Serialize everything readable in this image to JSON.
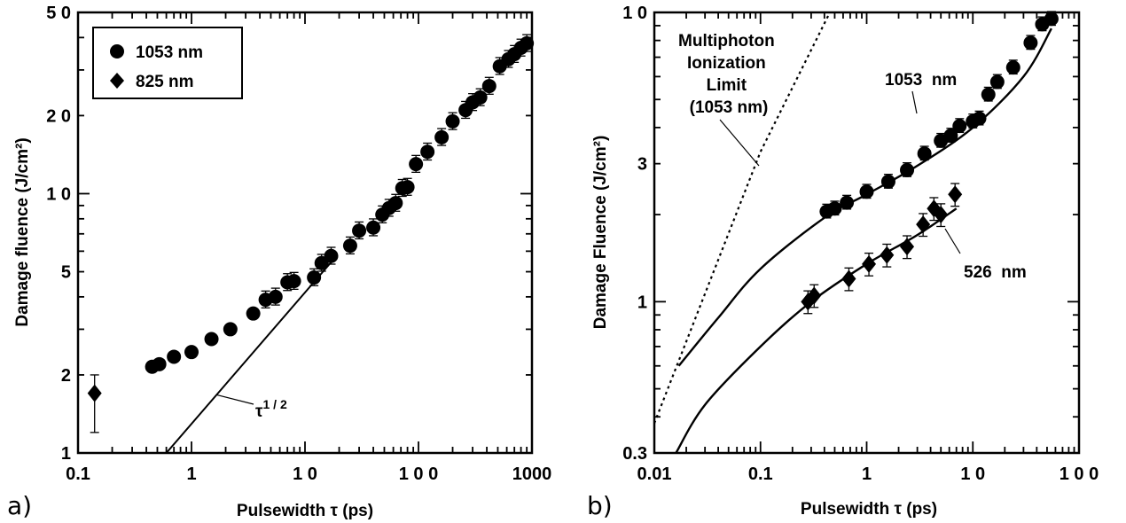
{
  "chart_data": [
    {
      "type": "scatter",
      "panel_label": "a)",
      "xlabel": "Pulsewidth τ (ps)",
      "ylabel": "Damage fluence (J/cm²)",
      "xscale": "log",
      "yscale": "log",
      "xlim": [
        0.1,
        1000
      ],
      "ylim": [
        1,
        50
      ],
      "xticks": [
        {
          "value": 0.1,
          "label": "0.1"
        },
        {
          "value": 1,
          "label": "1"
        },
        {
          "value": 10,
          "label": "1 0"
        },
        {
          "value": 100,
          "label": "1 0 0"
        },
        {
          "value": 1000,
          "label": "1000"
        }
      ],
      "yticks": [
        {
          "value": 1,
          "label": "1"
        },
        {
          "value": 2,
          "label": "2"
        },
        {
          "value": 5,
          "label": "5"
        },
        {
          "value": 10,
          "label": "1 0"
        },
        {
          "value": 20,
          "label": "2 0"
        },
        {
          "value": 50,
          "label": "5 0"
        }
      ],
      "legend": {
        "position": "top-left",
        "entries": [
          {
            "label": "1053 nm",
            "marker": "circle"
          },
          {
            "label": "825 nm",
            "marker": "diamond"
          }
        ]
      },
      "series": [
        {
          "name": "1053 nm",
          "marker": "circle",
          "points": [
            [
              0.45,
              2.15
            ],
            [
              0.52,
              2.2
            ],
            [
              0.7,
              2.35
            ],
            [
              1.0,
              2.45
            ],
            [
              1.5,
              2.75
            ],
            [
              2.2,
              3.0
            ],
            [
              3.5,
              3.45
            ],
            [
              4.5,
              3.9
            ],
            [
              5.5,
              4.0
            ],
            [
              7.0,
              4.55
            ],
            [
              8.0,
              4.6
            ],
            [
              12,
              4.75
            ],
            [
              14,
              5.4
            ],
            [
              17,
              5.75
            ],
            [
              25,
              6.3
            ],
            [
              30,
              7.2
            ],
            [
              40,
              7.4
            ],
            [
              48,
              8.3
            ],
            [
              55,
              8.8
            ],
            [
              63,
              9.2
            ],
            [
              72,
              10.5
            ],
            [
              80,
              10.6
            ],
            [
              95,
              13.0
            ],
            [
              120,
              14.5
            ],
            [
              160,
              16.5
            ],
            [
              200,
              19.0
            ],
            [
              260,
              21.0
            ],
            [
              300,
              22.5
            ],
            [
              350,
              23.5
            ],
            [
              420,
              26.0
            ],
            [
              520,
              31.0
            ],
            [
              620,
              33.0
            ],
            [
              700,
              34.5
            ],
            [
              800,
              36.5
            ],
            [
              900,
              38.0
            ]
          ]
        },
        {
          "name": "825 nm",
          "marker": "diamond",
          "points": [
            [
              0.14,
              1.7
            ]
          ],
          "error_bars": [
            [
              1.2,
              2.0
            ]
          ]
        }
      ],
      "fit_line": {
        "label": "τ1/2",
        "exponent": 0.5,
        "from": [
          0.6,
          1.0
        ],
        "to": [
          18,
          5.6
        ]
      },
      "annotations": [
        {
          "text": "τ",
          "superscript": "1 / 2"
        }
      ]
    },
    {
      "type": "scatter",
      "panel_label": "b)",
      "xlabel": "Pulsewidth τ (ps)",
      "ylabel": "Damage Fluence (J/cm²)",
      "xscale": "log",
      "yscale": "log",
      "xlim": [
        0.01,
        100
      ],
      "ylim": [
        0.3,
        10
      ],
      "xticks": [
        {
          "value": 0.01,
          "label": "0.01"
        },
        {
          "value": 0.1,
          "label": "0.1"
        },
        {
          "value": 1,
          "label": "1"
        },
        {
          "value": 10,
          "label": "1 0"
        },
        {
          "value": 100,
          "label": "1 0 0"
        }
      ],
      "yticks": [
        {
          "value": 0.3,
          "label": "0.3"
        },
        {
          "value": 1,
          "label": "1"
        },
        {
          "value": 3,
          "label": "3"
        },
        {
          "value": 10,
          "label": "1 0"
        }
      ],
      "series": [
        {
          "name": "1053 nm",
          "marker": "circle",
          "points": [
            [
              0.42,
              2.05
            ],
            [
              0.5,
              2.1
            ],
            [
              0.65,
              2.2
            ],
            [
              1.0,
              2.4
            ],
            [
              1.6,
              2.6
            ],
            [
              2.4,
              2.85
            ],
            [
              3.5,
              3.25
            ],
            [
              5.0,
              3.6
            ],
            [
              6.2,
              3.75
            ],
            [
              7.5,
              4.05
            ],
            [
              10,
              4.2
            ],
            [
              11.5,
              4.3
            ],
            [
              14,
              5.2
            ],
            [
              17,
              5.75
            ],
            [
              24,
              6.45
            ],
            [
              35,
              7.85
            ],
            [
              45,
              9.1
            ],
            [
              55,
              9.5
            ]
          ]
        },
        {
          "name": "526 nm",
          "marker": "diamond",
          "points": [
            [
              0.28,
              1.0
            ],
            [
              0.32,
              1.05
            ],
            [
              0.68,
              1.2
            ],
            [
              1.05,
              1.35
            ],
            [
              1.55,
              1.45
            ],
            [
              2.4,
              1.55
            ],
            [
              3.4,
              1.85
            ],
            [
              4.3,
              2.1
            ],
            [
              5.0,
              2.0
            ],
            [
              6.8,
              2.35
            ]
          ]
        }
      ],
      "curves": [
        {
          "name": "1053 nm",
          "points": [
            [
              0.017,
              0.6
            ],
            [
              0.04,
              0.88
            ],
            [
              0.1,
              1.3
            ],
            [
              0.4,
              1.95
            ],
            [
              1.0,
              2.35
            ],
            [
              3.0,
              2.95
            ],
            [
              10,
              4.0
            ],
            [
              30,
              6.0
            ],
            [
              55,
              8.8
            ]
          ]
        },
        {
          "name": "526 nm",
          "points": [
            [
              0.016,
              0.3
            ],
            [
              0.03,
              0.44
            ],
            [
              0.1,
              0.7
            ],
            [
              0.3,
              1.0
            ],
            [
              1.0,
              1.35
            ],
            [
              3.0,
              1.7
            ],
            [
              7.0,
              2.1
            ]
          ]
        },
        {
          "name": "Multiphoton Ionization Limit (1053 nm)",
          "dashed": true,
          "points": [
            [
              0.01,
              0.38
            ],
            [
              0.1,
              3.3
            ],
            [
              0.45,
              10.0
            ]
          ]
        }
      ],
      "annotations": [
        {
          "text_lines": [
            "Multiphoton",
            "Ionization",
            "Limit",
            "(1053 nm)"
          ]
        },
        {
          "text": "1053  nm"
        },
        {
          "text": "526  nm"
        }
      ]
    }
  ]
}
